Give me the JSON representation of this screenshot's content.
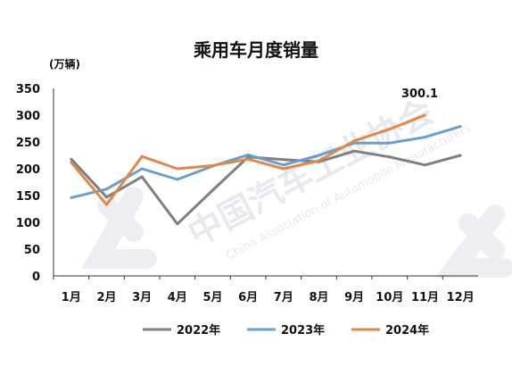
{
  "watermark": {
    "org_name": "中国汽车工业协会",
    "org_name_en": "China Association of Automobile Manufacturers"
  },
  "colors": {
    "series_2022": "#7f7f7f",
    "series_2023": "#6a9fcb",
    "series_2024": "#e0884c",
    "axis": "#333333"
  },
  "chart_data": {
    "type": "line",
    "title": "乘用车月度销量",
    "unit_label": "(万辆)",
    "categories": [
      "1月",
      "2月",
      "3月",
      "4月",
      "5月",
      "6月",
      "7月",
      "8月",
      "9月",
      "10月",
      "11月",
      "12月"
    ],
    "ylim": [
      0,
      350
    ],
    "yticks": [
      0,
      50,
      100,
      150,
      200,
      250,
      300,
      350
    ],
    "grid": false,
    "legend_position": "bottom",
    "series": [
      {
        "name": "2022年",
        "color": "#7f7f7f",
        "values": [
          218,
          147,
          185,
          97,
          160,
          222,
          217,
          213,
          233,
          222,
          207,
          225
        ]
      },
      {
        "name": "2023年",
        "color": "#6a9fcb",
        "values": [
          146,
          162,
          200,
          180,
          205,
          226,
          207,
          225,
          248,
          248,
          259,
          279
        ]
      },
      {
        "name": "2024年",
        "color": "#e0884c",
        "values": [
          212,
          133,
          223,
          200,
          206,
          218,
          200,
          215,
          252,
          274,
          300.1,
          null
        ]
      }
    ],
    "annotations": [
      {
        "series": "2024年",
        "category": "11月",
        "text": "300.1"
      }
    ]
  }
}
